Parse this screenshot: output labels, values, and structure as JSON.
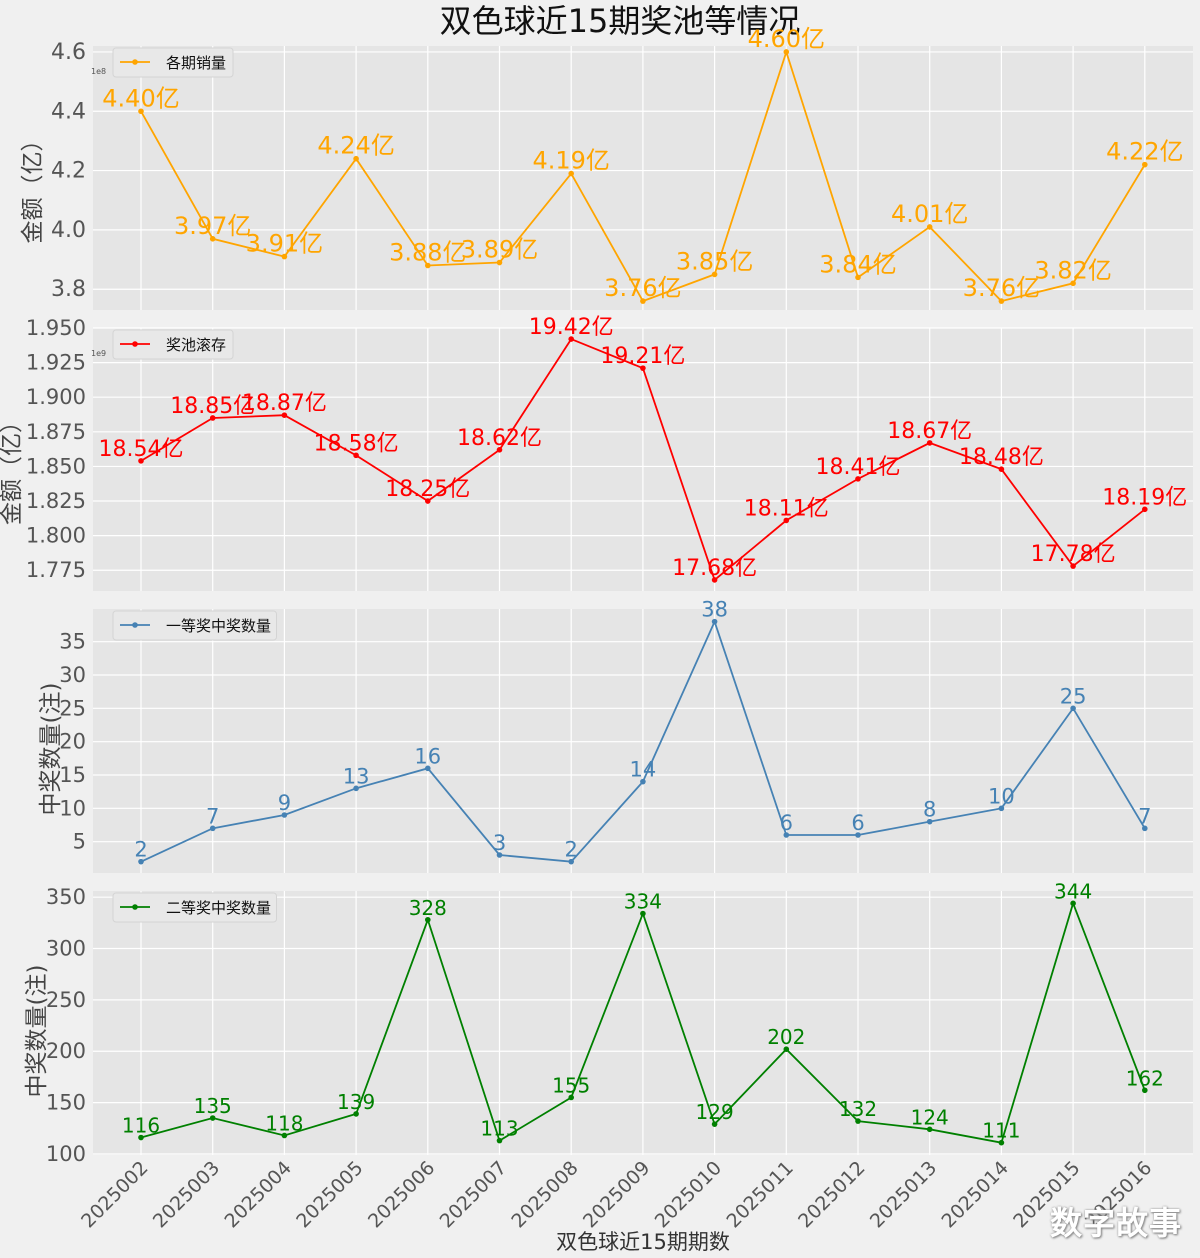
{
  "title": "双色球近15期奖池等情况",
  "xlabel": "双色球近15期期数",
  "watermark": "数字故事",
  "colors": {
    "background": "#f0f0f0",
    "axes_bg": "#e5e5e5",
    "grid": "#ffffff"
  },
  "chart_data": [
    {
      "type": "line",
      "categories": [
        "2025002",
        "2025003",
        "2025004",
        "2025005",
        "2025006",
        "2025007",
        "2025008",
        "2025009",
        "2025010",
        "2025011",
        "2025012",
        "2025013",
        "2025014",
        "2025015",
        "2025016"
      ],
      "series": [
        {
          "name": "各期销量",
          "color": "#ffa500",
          "values": [
            440000000,
            397000000,
            391000000,
            424000000,
            388000000,
            389000000,
            419000000,
            376000000,
            385000000,
            460000000,
            384000000,
            401000000,
            376000000,
            382000000,
            422000000
          ],
          "labels": [
            "4.40亿",
            "3.97亿",
            "3.91亿",
            "4.24亿",
            "3.88亿",
            "3.89亿",
            "4.19亿",
            "3.76亿",
            "3.85亿",
            "4.60亿",
            "3.84亿",
            "4.01亿",
            "3.76亿",
            "3.82亿",
            "4.22亿"
          ]
        }
      ],
      "ylabel": "金额（亿）",
      "offset_text": "1e8",
      "ylim": [
        373000000,
        462000000
      ],
      "yticks": [
        380000000,
        400000000,
        420000000,
        440000000,
        460000000
      ],
      "ytick_labels": [
        "3.8",
        "4.0",
        "4.2",
        "4.4",
        "4.6"
      ],
      "legend": "top-left",
      "grid": true
    },
    {
      "type": "line",
      "categories": [
        "2025002",
        "2025003",
        "2025004",
        "2025005",
        "2025006",
        "2025007",
        "2025008",
        "2025009",
        "2025010",
        "2025011",
        "2025012",
        "2025013",
        "2025014",
        "2025015",
        "2025016"
      ],
      "series": [
        {
          "name": "奖池滚存",
          "color": "#ff0000",
          "values": [
            1854000000,
            1885000000,
            1887000000,
            1858000000,
            1825000000,
            1862000000,
            1942000000,
            1921000000,
            1768000000,
            1811000000,
            1841000000,
            1867000000,
            1848000000,
            1778000000,
            1819000000
          ],
          "labels": [
            "18.54亿",
            "18.85亿",
            "18.87亿",
            "18.58亿",
            "18.25亿",
            "18.62亿",
            "19.42亿",
            "19.21亿",
            "17.68亿",
            "18.11亿",
            "18.41亿",
            "18.67亿",
            "18.48亿",
            "17.78亿",
            "18.19亿"
          ]
        }
      ],
      "ylabel": "金额（亿）",
      "offset_text": "1e9",
      "ylim": [
        1760000000,
        1950000000
      ],
      "yticks": [
        1775000000,
        1800000000,
        1825000000,
        1850000000,
        1875000000,
        1900000000,
        1925000000,
        1950000000
      ],
      "ytick_labels": [
        "1.775",
        "1.800",
        "1.825",
        "1.850",
        "1.875",
        "1.900",
        "1.925",
        "1.950"
      ],
      "legend": "top-left",
      "grid": true
    },
    {
      "type": "line",
      "categories": [
        "2025002",
        "2025003",
        "2025004",
        "2025005",
        "2025006",
        "2025007",
        "2025008",
        "2025009",
        "2025010",
        "2025011",
        "2025012",
        "2025013",
        "2025014",
        "2025015",
        "2025016"
      ],
      "series": [
        {
          "name": "一等奖中奖数量",
          "color": "#4682b4",
          "values": [
            2,
            7,
            9,
            13,
            16,
            3,
            2,
            14,
            38,
            6,
            6,
            8,
            10,
            25,
            7
          ],
          "labels": [
            "2",
            "7",
            "9",
            "13",
            "16",
            "3",
            "2",
            "14",
            "38",
            "6",
            "6",
            "8",
            "10",
            "25",
            "7"
          ]
        }
      ],
      "ylabel": "中奖数量(注)",
      "ylim": [
        0.3,
        39.9
      ],
      "yticks": [
        5,
        10,
        15,
        20,
        25,
        30,
        35
      ],
      "ytick_labels": [
        "5",
        "10",
        "15",
        "20",
        "25",
        "30",
        "35"
      ],
      "legend": "top-left",
      "grid": true
    },
    {
      "type": "line",
      "categories": [
        "2025002",
        "2025003",
        "2025004",
        "2025005",
        "2025006",
        "2025007",
        "2025008",
        "2025009",
        "2025010",
        "2025011",
        "2025012",
        "2025013",
        "2025014",
        "2025015",
        "2025016"
      ],
      "series": [
        {
          "name": "二等奖中奖数量",
          "color": "#008000",
          "values": [
            116,
            135,
            118,
            139,
            328,
            113,
            155,
            334,
            129,
            202,
            132,
            124,
            111,
            344,
            162
          ],
          "labels": [
            "116",
            "135",
            "118",
            "139",
            "328",
            "113",
            "155",
            "334",
            "129",
            "202",
            "132",
            "124",
            "111",
            "344",
            "162"
          ]
        }
      ],
      "ylabel": "中奖数量(注)",
      "ylim": [
        99,
        356
      ],
      "yticks": [
        100,
        150,
        200,
        250,
        300,
        350
      ],
      "ytick_labels": [
        "100",
        "150",
        "200",
        "250",
        "300",
        "350"
      ],
      "legend": "top-left",
      "grid": true
    }
  ]
}
